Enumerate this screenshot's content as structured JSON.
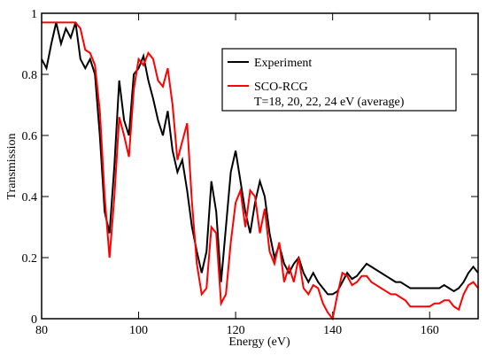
{
  "chart_data": {
    "type": "line",
    "x_label": "Energy (eV)",
    "y_label": "Transmission",
    "x": [
      80,
      81,
      82,
      83,
      84,
      85,
      86,
      87,
      88,
      89,
      90,
      91,
      92,
      93,
      94,
      95,
      96,
      97,
      98,
      99,
      100,
      101,
      102,
      103,
      104,
      105,
      106,
      107,
      108,
      109,
      110,
      111,
      112,
      113,
      114,
      115,
      116,
      117,
      118,
      119,
      120,
      121,
      122,
      123,
      124,
      125,
      126,
      127,
      128,
      129,
      130,
      131,
      132,
      133,
      134,
      135,
      136,
      137,
      138,
      139,
      140,
      141,
      142,
      143,
      144,
      145,
      146,
      147,
      148,
      149,
      150,
      151,
      152,
      153,
      154,
      155,
      156,
      157,
      158,
      159,
      160,
      161,
      162,
      163,
      164,
      165,
      166,
      167,
      168,
      169,
      170
    ],
    "series": [
      {
        "name": "Experiment",
        "color": "#000000",
        "values": [
          0.85,
          0.82,
          0.9,
          0.97,
          0.9,
          0.95,
          0.92,
          0.97,
          0.85,
          0.82,
          0.85,
          0.8,
          0.6,
          0.35,
          0.28,
          0.5,
          0.78,
          0.65,
          0.6,
          0.8,
          0.82,
          0.86,
          0.78,
          0.72,
          0.65,
          0.6,
          0.68,
          0.55,
          0.48,
          0.52,
          0.42,
          0.3,
          0.22,
          0.15,
          0.22,
          0.45,
          0.35,
          0.12,
          0.3,
          0.48,
          0.55,
          0.45,
          0.35,
          0.28,
          0.38,
          0.45,
          0.4,
          0.28,
          0.2,
          0.24,
          0.18,
          0.15,
          0.18,
          0.2,
          0.15,
          0.12,
          0.15,
          0.12,
          0.1,
          0.08,
          0.08,
          0.09,
          0.12,
          0.15,
          0.13,
          0.14,
          0.16,
          0.18,
          0.17,
          0.16,
          0.15,
          0.14,
          0.13,
          0.12,
          0.12,
          0.11,
          0.1,
          0.1,
          0.1,
          0.1,
          0.1,
          0.1,
          0.1,
          0.11,
          0.1,
          0.09,
          0.1,
          0.12,
          0.15,
          0.17,
          0.15
        ]
      },
      {
        "name": "SCO-RCG",
        "description": "T=18, 20, 22, 24 eV (average)",
        "color": "#ff0000",
        "values": [
          0.97,
          0.97,
          0.97,
          0.97,
          0.97,
          0.97,
          0.97,
          0.97,
          0.95,
          0.88,
          0.87,
          0.83,
          0.68,
          0.4,
          0.2,
          0.4,
          0.66,
          0.6,
          0.53,
          0.75,
          0.85,
          0.83,
          0.87,
          0.85,
          0.78,
          0.76,
          0.82,
          0.7,
          0.52,
          0.58,
          0.64,
          0.38,
          0.18,
          0.08,
          0.1,
          0.3,
          0.28,
          0.05,
          0.08,
          0.25,
          0.38,
          0.42,
          0.3,
          0.42,
          0.4,
          0.28,
          0.36,
          0.22,
          0.18,
          0.25,
          0.12,
          0.17,
          0.12,
          0.2,
          0.1,
          0.08,
          0.11,
          0.1,
          0.05,
          0.02,
          0.0,
          0.08,
          0.15,
          0.14,
          0.11,
          0.12,
          0.14,
          0.14,
          0.12,
          0.11,
          0.1,
          0.09,
          0.08,
          0.08,
          0.07,
          0.06,
          0.04,
          0.04,
          0.04,
          0.04,
          0.04,
          0.05,
          0.05,
          0.06,
          0.06,
          0.04,
          0.03,
          0.08,
          0.11,
          0.12,
          0.1
        ]
      }
    ],
    "xlim": [
      80,
      170
    ],
    "xticks": [
      80,
      100,
      120,
      140,
      160
    ],
    "ylim": [
      0,
      1
    ],
    "yticks": [
      0,
      0.2,
      0.4,
      0.6,
      0.8,
      1
    ],
    "grid": false,
    "legend": "upper right"
  }
}
